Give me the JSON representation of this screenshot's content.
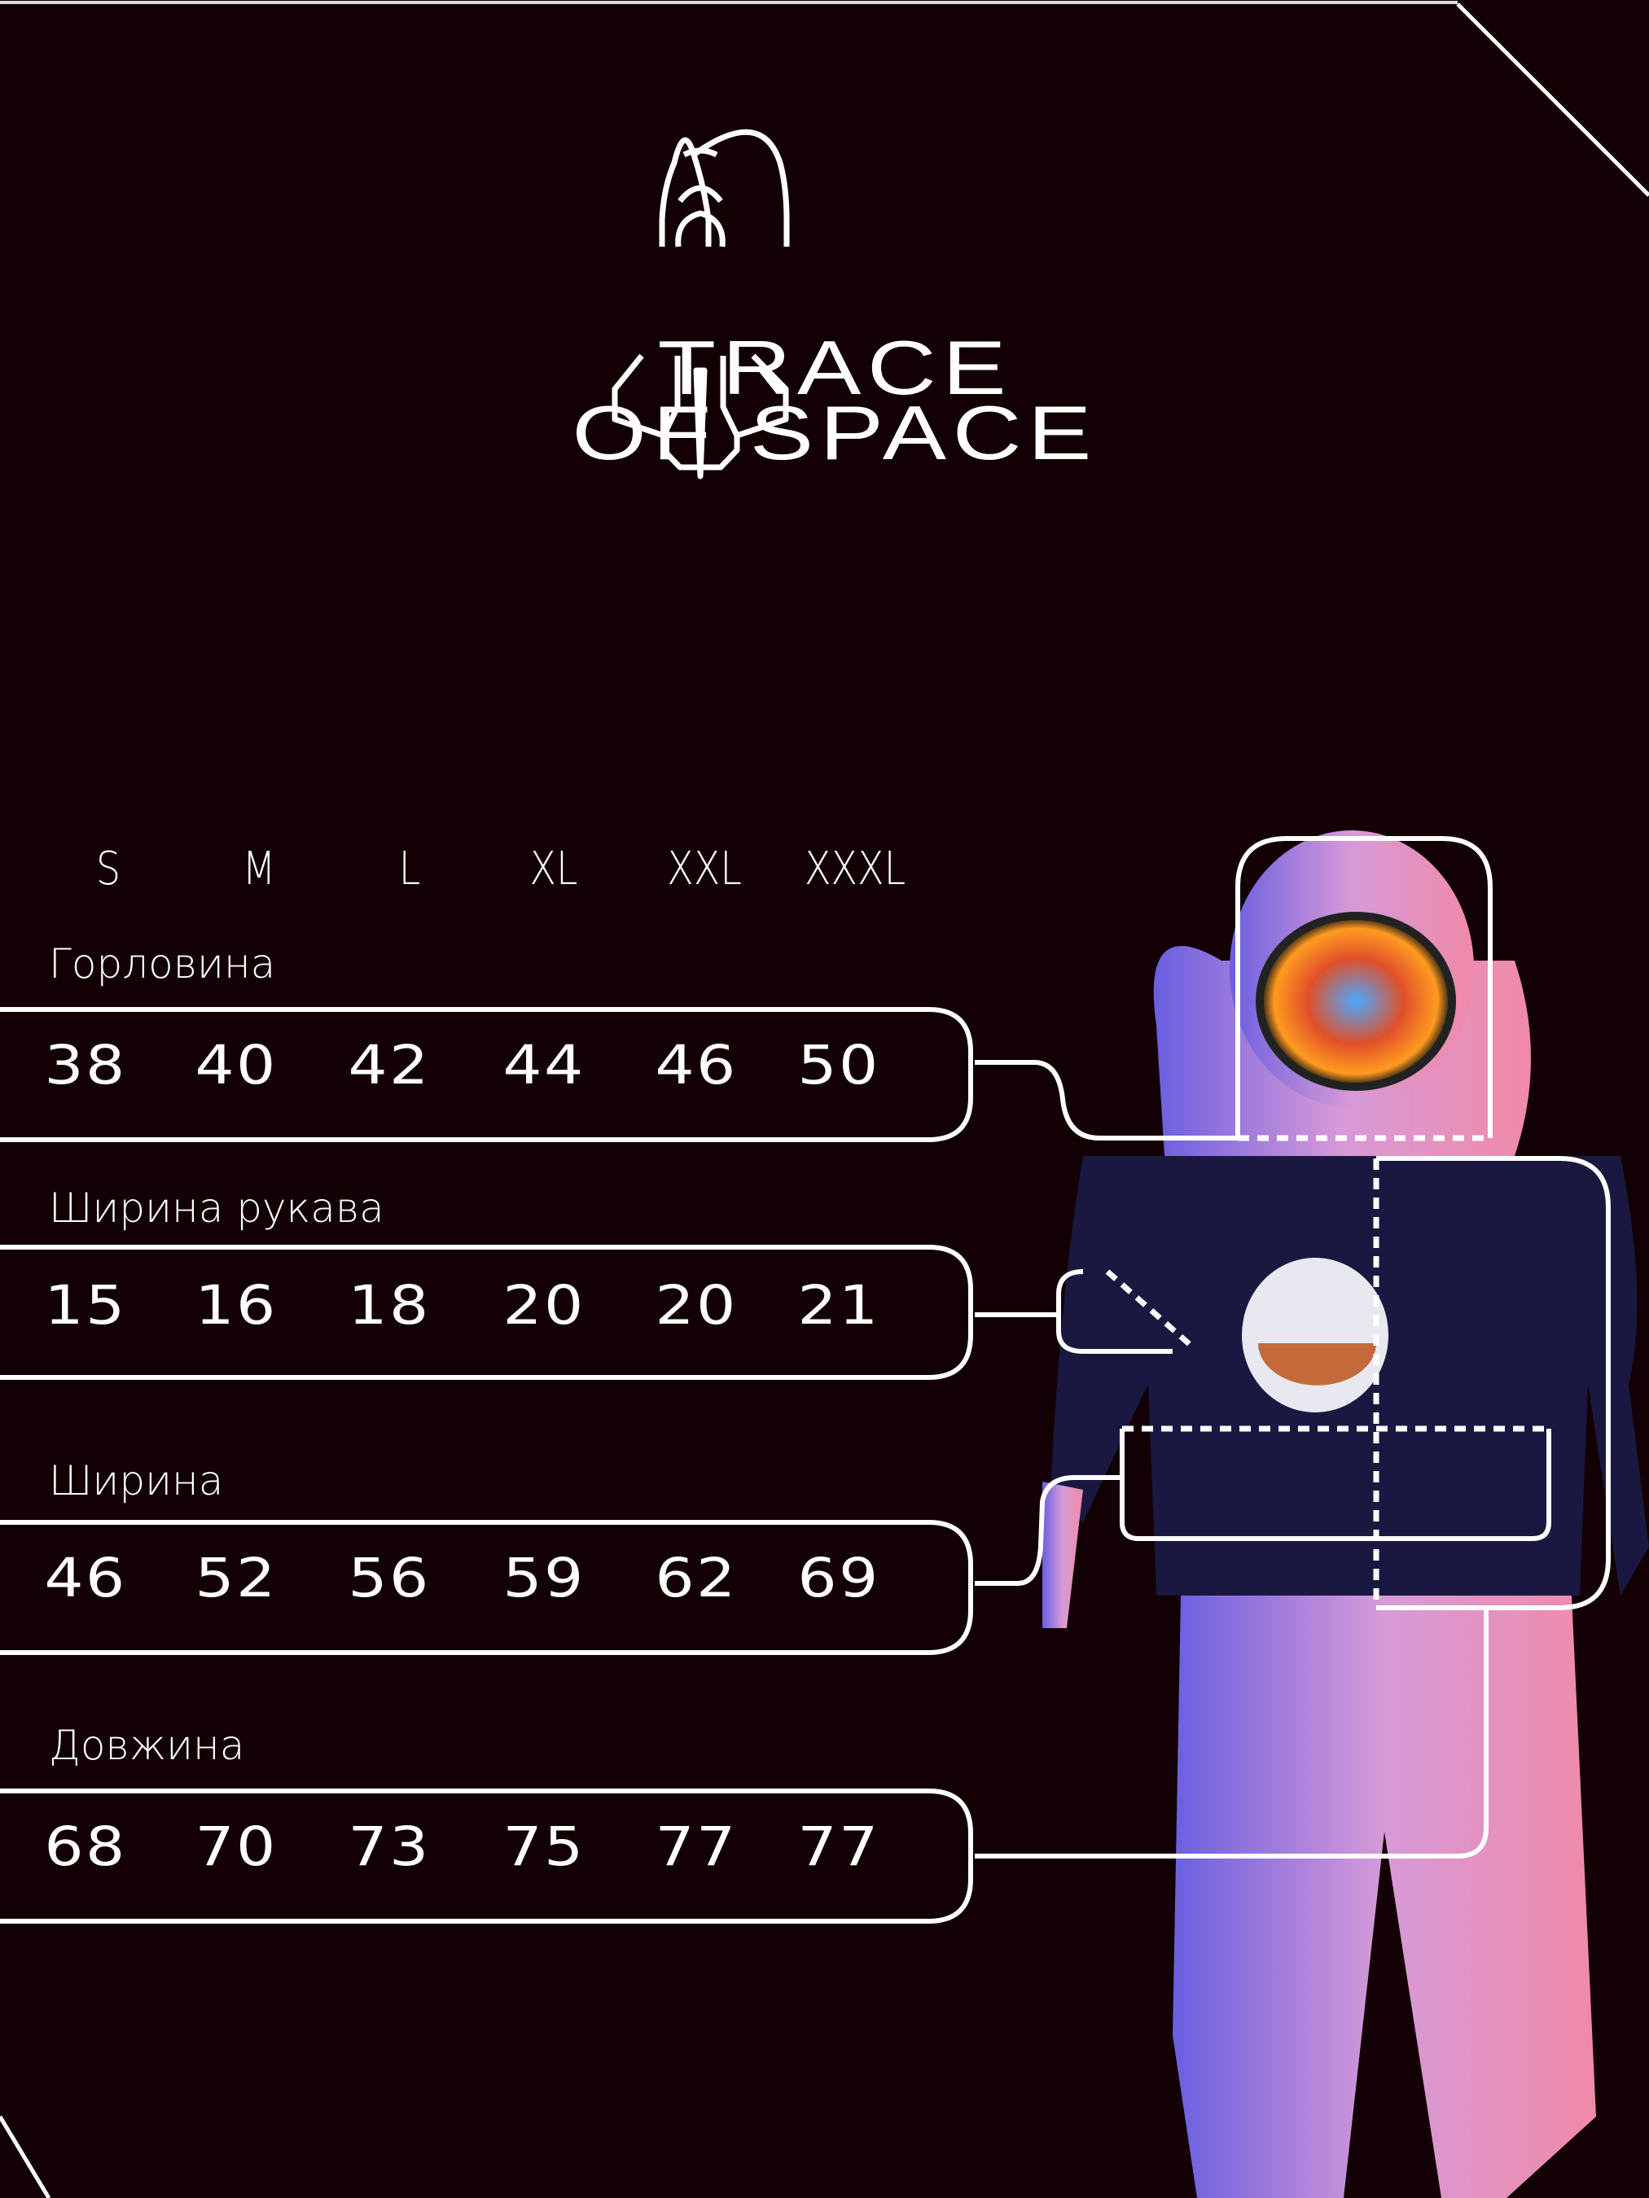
{
  "brand": {
    "line1": "TRACE",
    "line2": "OF SPACE"
  },
  "sizes": [
    "S",
    "M",
    "L",
    "XL",
    "XXL",
    "XXXL"
  ],
  "measurements": [
    {
      "label": "Горловина",
      "values": [
        "38",
        "40",
        "42",
        "44",
        "46",
        "50"
      ]
    },
    {
      "label": "Ширина рукава",
      "values": [
        "15",
        "16",
        "18",
        "20",
        "20",
        "21"
      ]
    },
    {
      "label": "Ширина",
      "values": [
        "46",
        "52",
        "56",
        "59",
        "62",
        "69"
      ]
    },
    {
      "label": "Довжина",
      "values": [
        "68",
        "70",
        "73",
        "75",
        "77",
        "77"
      ]
    }
  ],
  "colors": {
    "background": "#120004",
    "line": "#ffffff",
    "accent_pink": "#e88fd0",
    "accent_blue": "#5a62d8"
  }
}
